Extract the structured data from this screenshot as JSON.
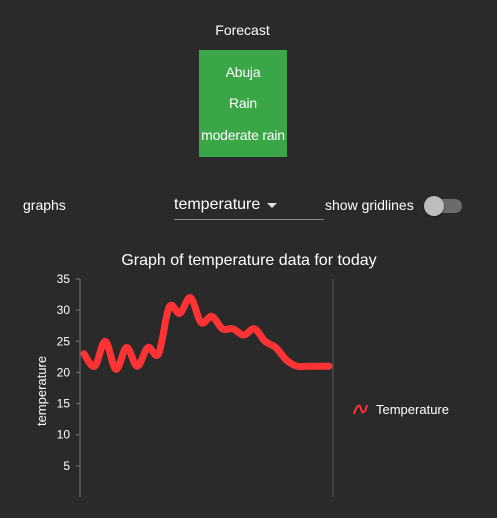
{
  "forecast": {
    "title": "Forecast",
    "city": "Abuja",
    "main": "Rain",
    "description": "moderate rain",
    "card_color": "#3aa648"
  },
  "controls": {
    "graphs_label": "graphs",
    "select_value": "temperature",
    "toggle_label": "show gridlines",
    "gridlines_on": false
  },
  "chart_data": {
    "type": "line",
    "title": "Graph of temperature data for today",
    "ylabel": "temperature",
    "xlabel": "",
    "ylim": [
      0,
      35
    ],
    "yticks": [
      5,
      10,
      15,
      20,
      25,
      30,
      35
    ],
    "grid": false,
    "legend_position": "right",
    "series": [
      {
        "name": "Temperature",
        "color": "#ff3333",
        "x": [
          0,
          1,
          2,
          3,
          4,
          5,
          6,
          7,
          8,
          9,
          10,
          11,
          12,
          13,
          14,
          15,
          16,
          17,
          18,
          19,
          20,
          21,
          22,
          23
        ],
        "values": [
          23,
          21,
          25,
          20.5,
          24,
          21,
          24,
          23,
          30.5,
          29.5,
          32,
          28,
          29,
          27,
          27,
          26,
          27,
          25,
          24,
          22,
          21,
          21,
          21,
          21
        ]
      }
    ]
  }
}
